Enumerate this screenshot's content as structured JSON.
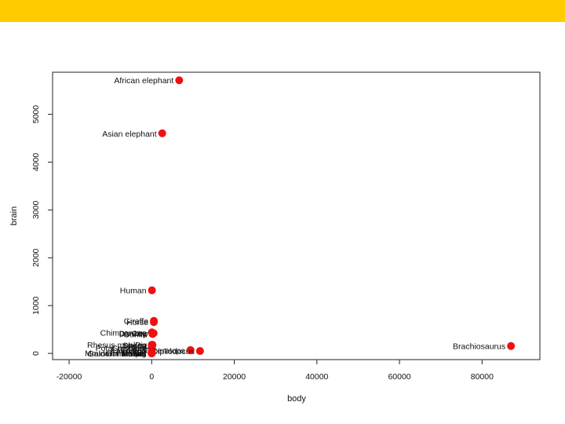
{
  "colors": {
    "banner": "#ffcc00",
    "points": "#ee1111"
  },
  "chart_data": {
    "type": "scatter",
    "xlabel": "body",
    "ylabel": "brain",
    "xlim": [
      -24000,
      94000
    ],
    "ylim": [
      -130,
      5880
    ],
    "xticks": [
      -20000,
      0,
      20000,
      40000,
      60000,
      80000
    ],
    "yticks": [
      0,
      1000,
      2000,
      3000,
      4000,
      5000
    ],
    "grid": false,
    "legend": "none",
    "points": [
      {
        "label": "African elephant",
        "x": 6654,
        "y": 5712
      },
      {
        "label": "Asian elephant",
        "x": 2547,
        "y": 4603
      },
      {
        "label": "Human",
        "x": 62,
        "y": 1320
      },
      {
        "label": "Giraffe",
        "x": 529,
        "y": 680
      },
      {
        "label": "Horse",
        "x": 521,
        "y": 655
      },
      {
        "label": "Chimpanzee",
        "x": 52,
        "y": 440
      },
      {
        "label": "Donkey",
        "x": 187,
        "y": 419
      },
      {
        "label": "Cow",
        "x": 465,
        "y": 423
      },
      {
        "label": "Gorilla",
        "x": 207,
        "y": 406
      },
      {
        "label": "Pig",
        "x": 192,
        "y": 180
      },
      {
        "label": "Rhesus monkey",
        "x": 7,
        "y": 179
      },
      {
        "label": "Sheep",
        "x": 56,
        "y": 175
      },
      {
        "label": "Jaguar",
        "x": 100,
        "y": 157
      },
      {
        "label": "Grey wolf",
        "x": 36,
        "y": 120
      },
      {
        "label": "Potar monkey",
        "x": 10,
        "y": 115
      },
      {
        "label": "Goat",
        "x": 28,
        "y": 115
      },
      {
        "label": "Kangaroo",
        "x": 35,
        "y": 56
      },
      {
        "label": "Triceratops",
        "x": 9400,
        "y": 70
      },
      {
        "label": "Dipliodocus",
        "x": 11700,
        "y": 50
      },
      {
        "label": "Brachiosaurus",
        "x": 87000,
        "y": 154.5
      },
      {
        "label": "Mountain beaver",
        "x": 1.35,
        "y": 8.1
      },
      {
        "label": "Mole",
        "x": 0.122,
        "y": 3
      },
      {
        "label": "Guinea pig",
        "x": 1.04,
        "y": 5.5
      },
      {
        "label": "Cat",
        "x": 3.3,
        "y": 25.6
      },
      {
        "label": "Rabbit",
        "x": 2.5,
        "y": 12.1
      },
      {
        "label": "Golden hamster",
        "x": 0.12,
        "y": 1
      },
      {
        "label": "Mouse",
        "x": 0.023,
        "y": 0.4
      },
      {
        "label": "Rat",
        "x": 0.28,
        "y": 1.9
      }
    ]
  }
}
